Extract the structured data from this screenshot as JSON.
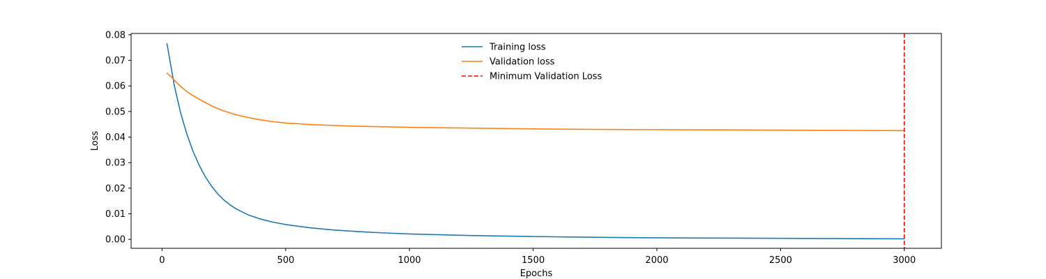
{
  "chart_data": {
    "type": "line",
    "title": "",
    "xlabel": "Epochs",
    "ylabel": "Loss",
    "xlim": [
      -125,
      3150
    ],
    "ylim": [
      -0.0035,
      0.0805
    ],
    "xticks": [
      0,
      500,
      1000,
      1500,
      2000,
      2500,
      3000
    ],
    "xtick_labels": [
      "0",
      "500",
      "1000",
      "1500",
      "2000",
      "2500",
      "3000"
    ],
    "yticks": [
      0.0,
      0.01,
      0.02,
      0.03,
      0.04,
      0.05,
      0.06,
      0.07,
      0.08
    ],
    "ytick_labels": [
      "0.00",
      "0.01",
      "0.02",
      "0.03",
      "0.04",
      "0.05",
      "0.06",
      "0.07",
      "0.08"
    ],
    "grid": false,
    "legend_position": "top-center",
    "series": [
      {
        "name": "Training loss",
        "color": "#1f77b4",
        "style": "solid",
        "x": [
          20,
          50,
          75,
          100,
          125,
          150,
          175,
          200,
          225,
          250,
          275,
          300,
          350,
          400,
          450,
          500,
          600,
          700,
          800,
          900,
          1000,
          1250,
          1500,
          1750,
          2000,
          2250,
          2500,
          2750,
          3000
        ],
        "y": [
          0.0765,
          0.06,
          0.0495,
          0.0413,
          0.0345,
          0.029,
          0.0245,
          0.0208,
          0.0178,
          0.0154,
          0.0135,
          0.0119,
          0.0095,
          0.0079,
          0.0067,
          0.0058,
          0.0045,
          0.0036,
          0.003,
          0.0025,
          0.0021,
          0.0015,
          0.0011,
          0.0008,
          0.0006,
          0.0005,
          0.0004,
          0.0003,
          0.0002
        ]
      },
      {
        "name": "Validation loss",
        "color": "#ff7f0e",
        "style": "solid",
        "x": [
          20,
          35,
          50,
          75,
          100,
          125,
          150,
          175,
          200,
          250,
          300,
          350,
          400,
          450,
          500,
          600,
          700,
          800,
          1000,
          1250,
          1500,
          1750,
          2000,
          2250,
          2500,
          2750,
          3000
        ],
        "y": [
          0.065,
          0.0638,
          0.0622,
          0.0598,
          0.0578,
          0.0562,
          0.0548,
          0.0535,
          0.0522,
          0.0502,
          0.0487,
          0.0476,
          0.0467,
          0.046,
          0.0455,
          0.0449,
          0.0445,
          0.0442,
          0.0438,
          0.0435,
          0.0432,
          0.043,
          0.0429,
          0.0428,
          0.0427,
          0.0426,
          0.0425
        ]
      }
    ],
    "vlines": [
      {
        "name": "Minimum Validation Loss",
        "x": 3000,
        "color": "#ff0000",
        "style": "dashed"
      }
    ]
  }
}
